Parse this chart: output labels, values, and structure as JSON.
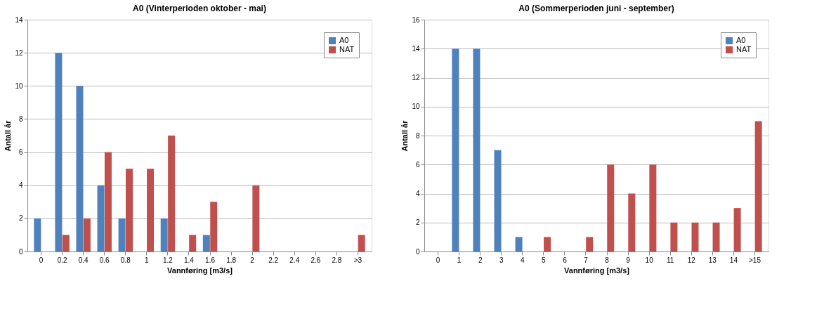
{
  "chart_data": [
    {
      "type": "bar",
      "title": "A0 (Vinterperioden oktober - mai)",
      "xlabel": "Vannføring [m3/s]",
      "ylabel": "Antall år",
      "categories": [
        "0",
        "0.2",
        "0.4",
        "0.6",
        "0.8",
        "1",
        "1.2",
        "1.4",
        "1.6",
        "1.8",
        "2",
        "2.2",
        "2.4",
        "2.6",
        "2.8",
        ">3"
      ],
      "series": [
        {
          "name": "A0",
          "color": "#4f81bd",
          "values": [
            2,
            12,
            10,
            4,
            2,
            0,
            2,
            0,
            1,
            0,
            0,
            0,
            0,
            0,
            0,
            0
          ]
        },
        {
          "name": "NAT",
          "color": "#c0504d",
          "values": [
            0,
            1,
            2,
            6,
            5,
            5,
            7,
            1,
            3,
            0,
            4,
            0,
            0,
            0,
            0,
            1
          ]
        }
      ],
      "ylim": [
        0,
        14
      ],
      "yticks": [
        0,
        2,
        4,
        6,
        8,
        10,
        12,
        14
      ],
      "grid": "y",
      "legend": "top right"
    },
    {
      "type": "bar",
      "title": "A0 (Sommerperioden juni - september)",
      "xlabel": "Vannføring [m3/s]",
      "ylabel": "Antall år",
      "categories": [
        "0",
        "1",
        "2",
        "3",
        "4",
        "5",
        "6",
        "7",
        "8",
        "9",
        "10",
        "11",
        "12",
        "13",
        "14",
        ">15"
      ],
      "series": [
        {
          "name": "A0",
          "color": "#4f81bd",
          "values": [
            0,
            14,
            14,
            7,
            1,
            0,
            0,
            0,
            0,
            0,
            0,
            0,
            0,
            0,
            0,
            0
          ]
        },
        {
          "name": "NAT",
          "color": "#c0504d",
          "values": [
            0,
            0,
            0,
            0,
            0,
            1,
            0,
            1,
            6,
            4,
            6,
            2,
            2,
            2,
            3,
            9
          ]
        }
      ],
      "ylim": [
        0,
        16
      ],
      "yticks": [
        0,
        2,
        4,
        6,
        8,
        10,
        12,
        14,
        16
      ],
      "grid": "y",
      "legend": "top right"
    }
  ]
}
